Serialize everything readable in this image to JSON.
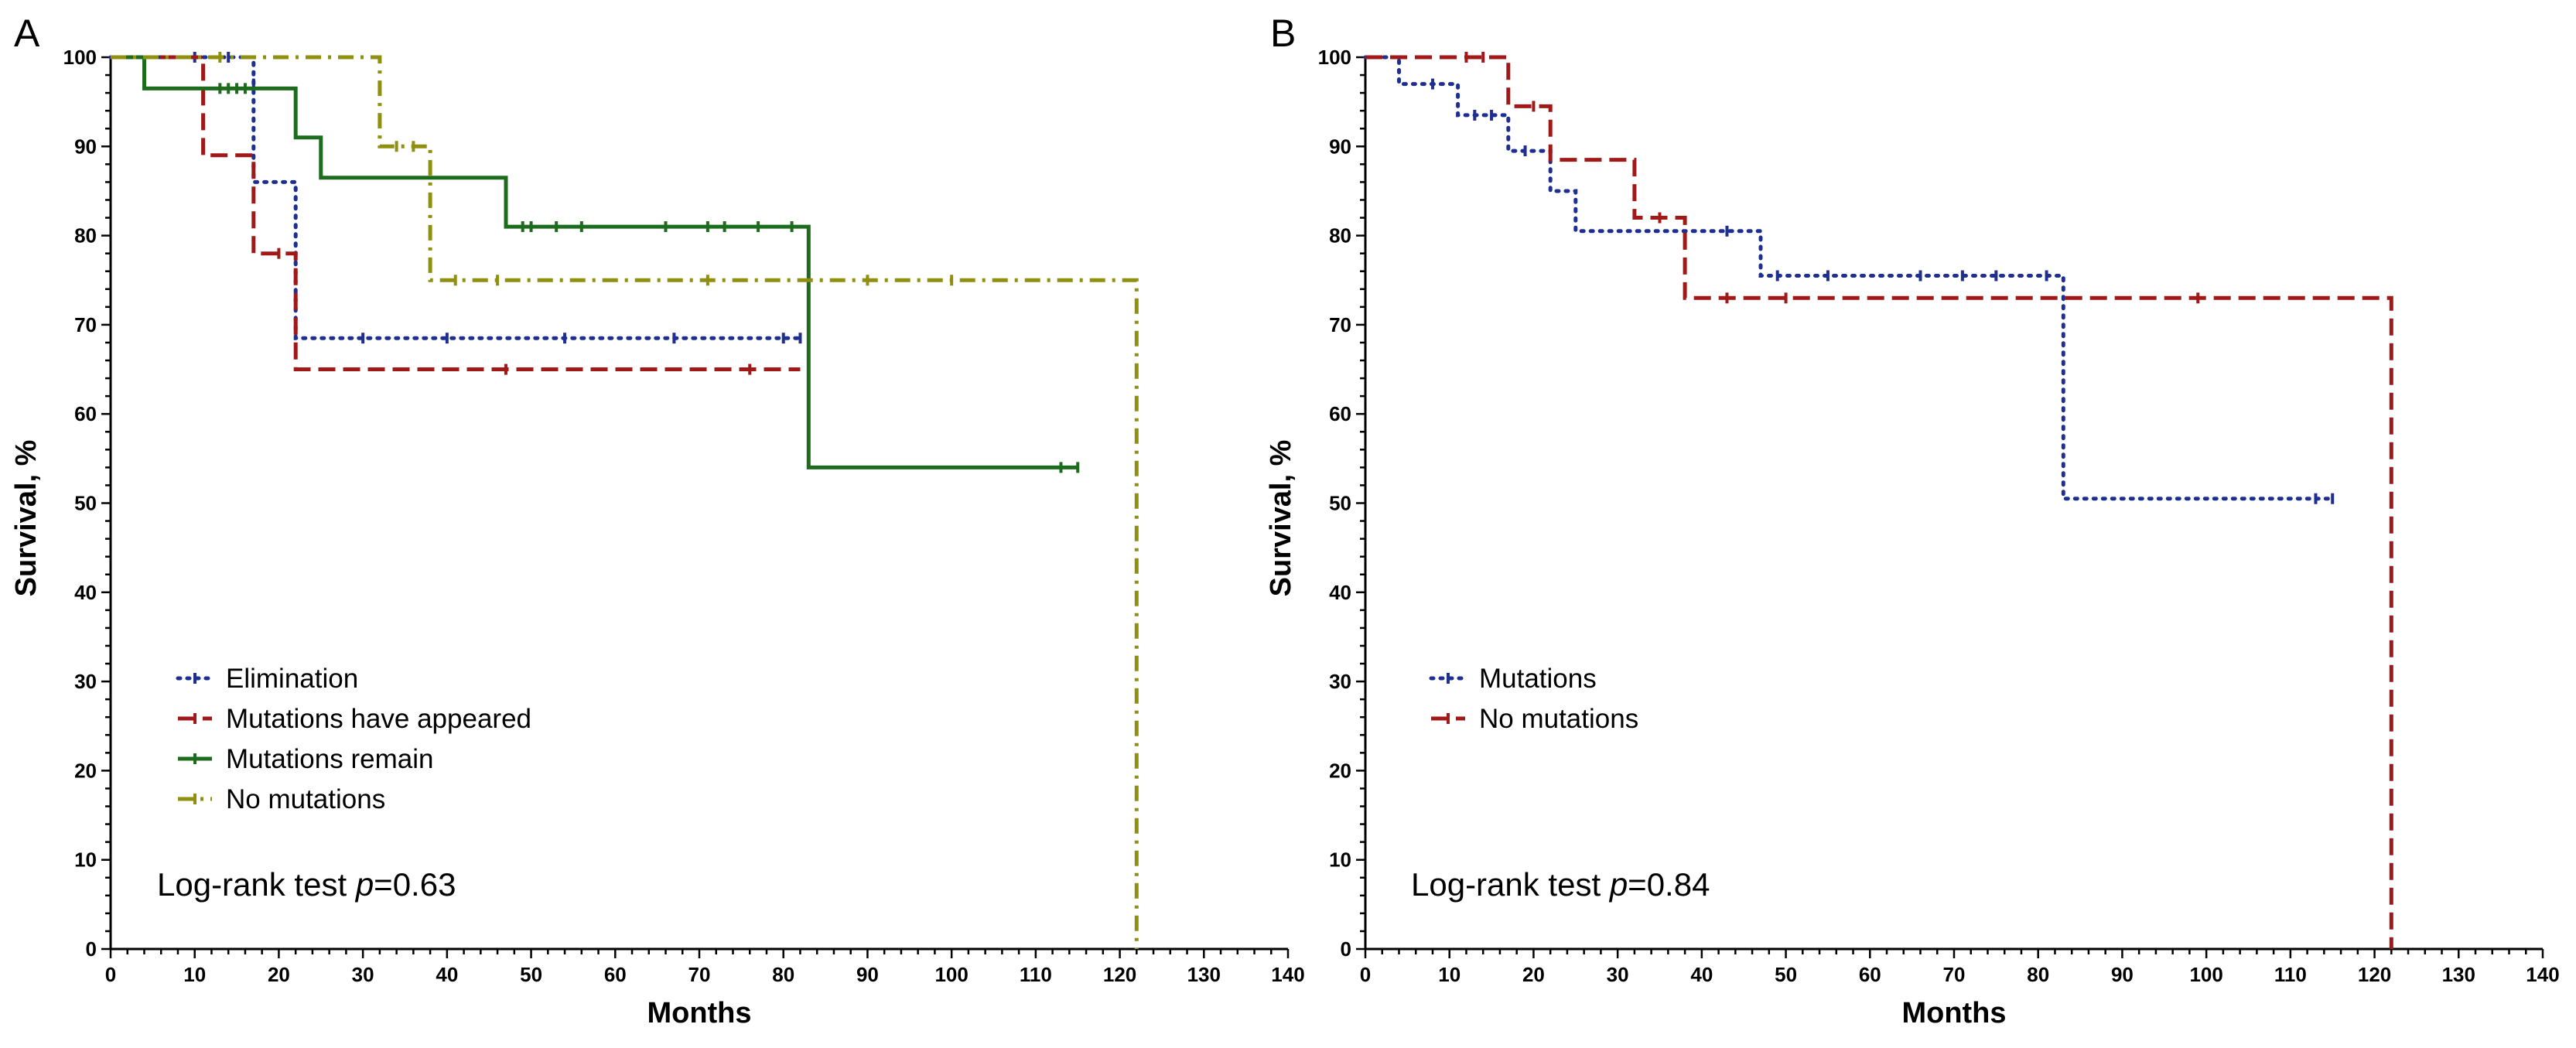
{
  "chart_data": [
    {
      "panel": "A",
      "type": "line",
      "subtype": "kaplan-meier step",
      "xlabel": "Months",
      "ylabel": "Survival, %",
      "xlim": [
        0,
        140
      ],
      "ylim": [
        0,
        100
      ],
      "xticks": [
        0,
        10,
        20,
        30,
        40,
        50,
        60,
        70,
        80,
        90,
        100,
        110,
        120,
        130,
        140
      ],
      "yticks": [
        0,
        10,
        20,
        30,
        40,
        50,
        60,
        70,
        80,
        90,
        100
      ],
      "legend_position": "lower-left",
      "annotation_prefix": "Log-rank test ",
      "annotation_p": "p",
      "annotation_value": "=0.63",
      "series": [
        {
          "name": "Elimination",
          "color": "#1f2f8f",
          "dash": "dotted",
          "steps": [
            [
              0,
              100
            ],
            [
              17,
              100
            ],
            [
              17,
              86
            ],
            [
              22,
              86
            ],
            [
              22,
              68.5
            ],
            [
              82,
              68.5
            ]
          ],
          "censors": [
            [
              10,
              100
            ],
            [
              14,
              100
            ],
            [
              17,
              97
            ],
            [
              30,
              68.5
            ],
            [
              40,
              68.5
            ],
            [
              54,
              68.5
            ],
            [
              67,
              68.5
            ],
            [
              80,
              68.5
            ],
            [
              82,
              68.5
            ]
          ]
        },
        {
          "name": "Mutations have appeared",
          "color": "#a01818",
          "dash": "dashed",
          "steps": [
            [
              0,
              100
            ],
            [
              11,
              100
            ],
            [
              11,
              89
            ],
            [
              17,
              89
            ],
            [
              17,
              78
            ],
            [
              22,
              78
            ],
            [
              22,
              65
            ],
            [
              82,
              65
            ]
          ],
          "censors": [
            [
              20,
              78
            ],
            [
              47,
              65
            ],
            [
              76,
              65
            ]
          ]
        },
        {
          "name": "Mutations remain",
          "color": "#1d6b1d",
          "dash": "solid",
          "steps": [
            [
              0,
              100
            ],
            [
              4,
              100
            ],
            [
              4,
              96.5
            ],
            [
              22,
              96.5
            ],
            [
              22,
              91
            ],
            [
              25,
              91
            ],
            [
              25,
              86.5
            ],
            [
              47,
              86.5
            ],
            [
              47,
              81
            ],
            [
              83,
              81
            ],
            [
              83,
              54
            ],
            [
              115,
              54
            ]
          ],
          "censors": [
            [
              13,
              96.5
            ],
            [
              14,
              96.5
            ],
            [
              15,
              96.5
            ],
            [
              16,
              96.5
            ],
            [
              49,
              81
            ],
            [
              50,
              81
            ],
            [
              53,
              81
            ],
            [
              56,
              81
            ],
            [
              66,
              81
            ],
            [
              71,
              81
            ],
            [
              73,
              81
            ],
            [
              77,
              81
            ],
            [
              81,
              81
            ],
            [
              113,
              54
            ],
            [
              115,
              54
            ]
          ]
        },
        {
          "name": "No mutations",
          "color": "#8f8f10",
          "dash": "dashdot",
          "steps": [
            [
              0,
              100
            ],
            [
              32,
              100
            ],
            [
              32,
              90
            ],
            [
              38,
              90
            ],
            [
              38,
              75
            ],
            [
              122,
              75
            ],
            [
              122,
              0
            ]
          ],
          "censors": [
            [
              13,
              100
            ],
            [
              34,
              90
            ],
            [
              36,
              90
            ],
            [
              41,
              75
            ],
            [
              46,
              75
            ],
            [
              71,
              75
            ],
            [
              90,
              75
            ],
            [
              100,
              75
            ]
          ]
        }
      ]
    },
    {
      "panel": "B",
      "type": "line",
      "subtype": "kaplan-meier step",
      "xlabel": "Months",
      "ylabel": "Survival, %",
      "xlim": [
        0,
        140
      ],
      "ylim": [
        0,
        100
      ],
      "xticks": [
        0,
        10,
        20,
        30,
        40,
        50,
        60,
        70,
        80,
        90,
        100,
        110,
        120,
        130,
        140
      ],
      "yticks": [
        0,
        10,
        20,
        30,
        40,
        50,
        60,
        70,
        80,
        90,
        100
      ],
      "legend_position": "lower-left",
      "annotation_prefix": "Log-rank test ",
      "annotation_p": "p",
      "annotation_value": "=0.84",
      "series": [
        {
          "name": "Mutations",
          "color": "#1f2f8f",
          "dash": "dotted",
          "steps": [
            [
              0,
              100
            ],
            [
              4,
              100
            ],
            [
              4,
              97
            ],
            [
              11,
              97
            ],
            [
              11,
              93.5
            ],
            [
              17,
              93.5
            ],
            [
              17,
              89.5
            ],
            [
              22,
              89.5
            ],
            [
              22,
              85
            ],
            [
              25,
              85
            ],
            [
              25,
              80.5
            ],
            [
              47,
              80.5
            ],
            [
              47,
              75.5
            ],
            [
              83,
              75.5
            ],
            [
              83,
              50.5
            ],
            [
              115,
              50.5
            ]
          ],
          "censors": [
            [
              8,
              97
            ],
            [
              13,
              93.5
            ],
            [
              15,
              93.5
            ],
            [
              19,
              89.5
            ],
            [
              43,
              80.5
            ],
            [
              49,
              75.5
            ],
            [
              55,
              75.5
            ],
            [
              66,
              75.5
            ],
            [
              71,
              75.5
            ],
            [
              75,
              75.5
            ],
            [
              81,
              75.5
            ],
            [
              113,
              50.5
            ],
            [
              115,
              50.5
            ]
          ]
        },
        {
          "name": "No mutations",
          "color": "#a01818",
          "dash": "dashed",
          "steps": [
            [
              0,
              100
            ],
            [
              17,
              100
            ],
            [
              17,
              94.5
            ],
            [
              22,
              94.5
            ],
            [
              22,
              88.5
            ],
            [
              32,
              88.5
            ],
            [
              32,
              82
            ],
            [
              38,
              82
            ],
            [
              38,
              73
            ],
            [
              122,
              73
            ],
            [
              122,
              0
            ]
          ],
          "censors": [
            [
              12,
              100
            ],
            [
              14,
              100
            ],
            [
              20,
              94.5
            ],
            [
              35,
              82
            ],
            [
              43,
              73
            ],
            [
              50,
              73
            ],
            [
              99,
              73
            ]
          ]
        }
      ]
    }
  ]
}
